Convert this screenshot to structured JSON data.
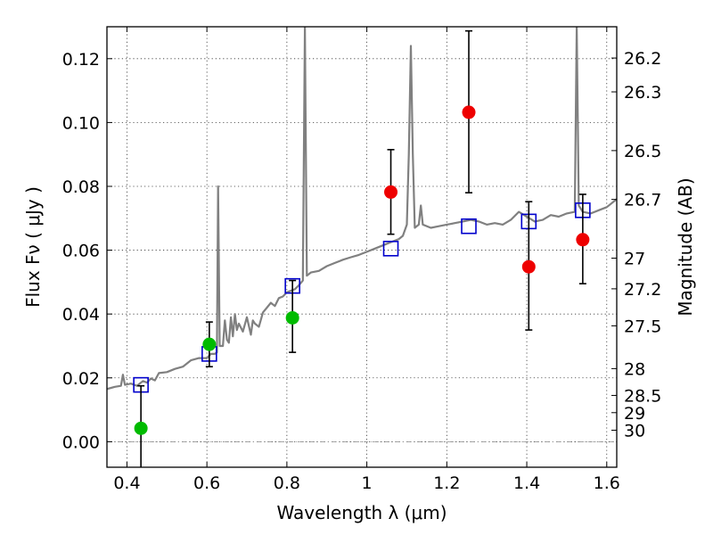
{
  "chart_data": {
    "type": "scatter",
    "xlabel": "Wavelength  λ (μm)",
    "ylabel": "Flux  Fν  ( μJy )",
    "y2label": "Magnitude (AB)",
    "xlim": [
      0.35,
      1.625
    ],
    "ylim": [
      -0.008,
      0.13
    ],
    "grid": true,
    "x_ticks": [
      0.4,
      0.6,
      0.8,
      1.0,
      1.2,
      1.4,
      1.6
    ],
    "x_tick_labels": [
      "0.4",
      "0.6",
      "0.8",
      "1",
      "1.2",
      "1.4",
      "1.6"
    ],
    "y_ticks": [
      0.0,
      0.02,
      0.04,
      0.06,
      0.08,
      0.1,
      0.12
    ],
    "y_tick_labels": [
      "0.00",
      "0.02",
      "0.04",
      "0.06",
      "0.08",
      "0.10",
      "0.12"
    ],
    "y2_ticks": [
      {
        "label": "26.2",
        "flux": 0.1202
      },
      {
        "label": "26.3",
        "flux": 0.1096
      },
      {
        "label": "26.5",
        "flux": 0.0912
      },
      {
        "label": "26.7",
        "flux": 0.0759
      },
      {
        "label": "27",
        "flux": 0.0575
      },
      {
        "label": "27.2",
        "flux": 0.0479
      },
      {
        "label": "27.5",
        "flux": 0.0363
      },
      {
        "label": "28",
        "flux": 0.0229
      },
      {
        "label": "28.5",
        "flux": 0.0145
      },
      {
        "label": "29",
        "flux": 0.0091
      },
      {
        "label": "30",
        "flux": 0.0036
      }
    ],
    "series": [
      {
        "kind": "model-spectrum",
        "color": "#808080",
        "points": [
          [
            0.35,
            0.0165
          ],
          [
            0.37,
            0.0172
          ],
          [
            0.385,
            0.0175
          ],
          [
            0.39,
            0.021
          ],
          [
            0.395,
            0.0178
          ],
          [
            0.41,
            0.0182
          ],
          [
            0.425,
            0.0175
          ],
          [
            0.44,
            0.019
          ],
          [
            0.45,
            0.0185
          ],
          [
            0.46,
            0.0198
          ],
          [
            0.47,
            0.0192
          ],
          [
            0.48,
            0.0215
          ],
          [
            0.5,
            0.0218
          ],
          [
            0.52,
            0.0228
          ],
          [
            0.54,
            0.0235
          ],
          [
            0.56,
            0.0255
          ],
          [
            0.58,
            0.0262
          ],
          [
            0.6,
            0.0262
          ],
          [
            0.61,
            0.0275
          ],
          [
            0.62,
            0.0275
          ],
          [
            0.625,
            0.028
          ],
          [
            0.628,
            0.08
          ],
          [
            0.632,
            0.03
          ],
          [
            0.64,
            0.03
          ],
          [
            0.645,
            0.038
          ],
          [
            0.65,
            0.032
          ],
          [
            0.655,
            0.031
          ],
          [
            0.66,
            0.039
          ],
          [
            0.665,
            0.033
          ],
          [
            0.67,
            0.04
          ],
          [
            0.675,
            0.035
          ],
          [
            0.68,
            0.037
          ],
          [
            0.69,
            0.0345
          ],
          [
            0.7,
            0.039
          ],
          [
            0.71,
            0.0335
          ],
          [
            0.715,
            0.038
          ],
          [
            0.72,
            0.037
          ],
          [
            0.73,
            0.036
          ],
          [
            0.74,
            0.0405
          ],
          [
            0.75,
            0.042
          ],
          [
            0.76,
            0.0435
          ],
          [
            0.77,
            0.0425
          ],
          [
            0.78,
            0.045
          ],
          [
            0.79,
            0.0455
          ],
          [
            0.8,
            0.0468
          ],
          [
            0.82,
            0.0478
          ],
          [
            0.83,
            0.049
          ],
          [
            0.84,
            0.0505
          ],
          [
            0.845,
            0.13
          ],
          [
            0.85,
            0.052
          ],
          [
            0.86,
            0.053
          ],
          [
            0.88,
            0.0535
          ],
          [
            0.9,
            0.055
          ],
          [
            0.92,
            0.056
          ],
          [
            0.94,
            0.057
          ],
          [
            0.96,
            0.0578
          ],
          [
            0.98,
            0.0585
          ],
          [
            1.0,
            0.0595
          ],
          [
            1.02,
            0.0605
          ],
          [
            1.04,
            0.0615
          ],
          [
            1.06,
            0.0625
          ],
          [
            1.08,
            0.0635
          ],
          [
            1.09,
            0.0645
          ],
          [
            1.1,
            0.068
          ],
          [
            1.105,
            0.09
          ],
          [
            1.11,
            0.124
          ],
          [
            1.115,
            0.09
          ],
          [
            1.12,
            0.067
          ],
          [
            1.13,
            0.068
          ],
          [
            1.135,
            0.074
          ],
          [
            1.14,
            0.068
          ],
          [
            1.16,
            0.067
          ],
          [
            1.18,
            0.0675
          ],
          [
            1.2,
            0.068
          ],
          [
            1.22,
            0.0685
          ],
          [
            1.24,
            0.069
          ],
          [
            1.26,
            0.0695
          ],
          [
            1.28,
            0.069
          ],
          [
            1.3,
            0.068
          ],
          [
            1.32,
            0.0685
          ],
          [
            1.34,
            0.068
          ],
          [
            1.36,
            0.0695
          ],
          [
            1.38,
            0.072
          ],
          [
            1.4,
            0.0705
          ],
          [
            1.42,
            0.069
          ],
          [
            1.44,
            0.0695
          ],
          [
            1.46,
            0.071
          ],
          [
            1.48,
            0.0705
          ],
          [
            1.5,
            0.0715
          ],
          [
            1.52,
            0.072
          ],
          [
            1.525,
            0.13
          ],
          [
            1.53,
            0.074
          ],
          [
            1.54,
            0.072
          ],
          [
            1.56,
            0.0715
          ],
          [
            1.58,
            0.0725
          ],
          [
            1.6,
            0.0735
          ],
          [
            1.625,
            0.076
          ]
        ]
      },
      {
        "kind": "model-photometry",
        "marker": "open-square",
        "color": "#0000cc",
        "points": [
          [
            0.435,
            0.0178
          ],
          [
            0.606,
            0.0275
          ],
          [
            0.814,
            0.0488
          ],
          [
            1.06,
            0.0605
          ],
          [
            1.255,
            0.0675
          ],
          [
            1.405,
            0.069
          ],
          [
            1.54,
            0.0725
          ]
        ]
      },
      {
        "kind": "observed-flux-green",
        "marker": "filled-circle",
        "color": "#00bb00",
        "points": [
          {
            "x": 0.435,
            "y": 0.0042,
            "err_low": -0.008,
            "err_high": 0.0175
          },
          {
            "x": 0.606,
            "y": 0.0305,
            "err_low": 0.0235,
            "err_high": 0.0375
          },
          {
            "x": 0.814,
            "y": 0.0388,
            "err_low": 0.028,
            "err_high": 0.0505
          }
        ]
      },
      {
        "kind": "observed-flux-red",
        "marker": "filled-circle",
        "color": "#ee0000",
        "points": [
          {
            "x": 1.06,
            "y": 0.0782,
            "err_low": 0.065,
            "err_high": 0.0915
          },
          {
            "x": 1.255,
            "y": 0.1032,
            "err_low": 0.078,
            "err_high": 0.1287
          },
          {
            "x": 1.405,
            "y": 0.0548,
            "err_low": 0.035,
            "err_high": 0.0752
          },
          {
            "x": 1.54,
            "y": 0.0633,
            "err_low": 0.0495,
            "err_high": 0.0775
          }
        ]
      }
    ]
  }
}
